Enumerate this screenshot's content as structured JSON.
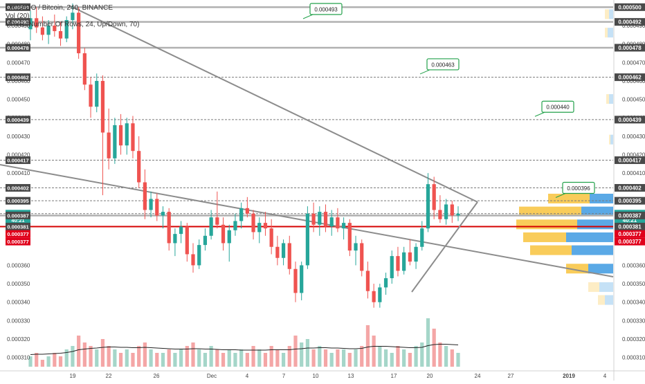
{
  "header": {
    "symbol_line": "OmiseGO / Bitcoin, 240, BINANCE",
    "vol_line": "Vol (20)",
    "vpvr_line": "VPVR (Number Of Rows, 24, Up/Down, 70)"
  },
  "colors": {
    "up": "#26a69a",
    "down": "#ef5350",
    "vol_up": "#a5d6c9",
    "vol_down": "#f4a6a6",
    "trendline": "#8c8c8c",
    "hline": "#9e9e9e",
    "red_level": "#d50000",
    "vp_up": "#5aa9e6",
    "vp_down": "#f9cc5a",
    "callout_border": "#22a14a",
    "label_dark": "#4a4a4a",
    "label_teal": "#26a69a",
    "label_red": "#e0001b"
  },
  "chart_data": {
    "type": "candlestick",
    "title": "OmiseGO / Bitcoin, 240, BINANCE",
    "x_tick_labels": [
      "19",
      "22",
      "26",
      "Dec",
      "4",
      "7",
      "10",
      "13",
      "17",
      "20",
      "24",
      "27",
      "2019",
      "4"
    ],
    "y_tick_labels": [
      "0.000310",
      "0.000320",
      "0.000330",
      "0.000340",
      "0.000350",
      "0.000360",
      "0.000410",
      "0.000420",
      "0.000430",
      "0.000440",
      "0.000450",
      "0.000460",
      "0.000470",
      "0.000480",
      "0.000490",
      "0.000500"
    ],
    "y_range": [
      0.000305,
      0.000502
    ],
    "price_labels": [
      {
        "text": "0.000500",
        "value": 0.0005,
        "style": "dark"
      },
      {
        "text": "0.000492",
        "value": 0.000492,
        "style": "dark"
      },
      {
        "text": "0.000478",
        "value": 0.000478,
        "style": "dark"
      },
      {
        "text": "0.000462",
        "value": 0.000462,
        "style": "dark"
      },
      {
        "text": "0.000439",
        "value": 0.000439,
        "style": "dark"
      },
      {
        "text": "0.000417",
        "value": 0.000417,
        "style": "dark"
      },
      {
        "text": "0.000402",
        "value": 0.000402,
        "style": "dark"
      },
      {
        "text": "0.000395",
        "value": 0.000395,
        "style": "dark"
      },
      {
        "text": "0.000388",
        "value": 0.000388,
        "style": "teal"
      },
      {
        "text": "40:21",
        "value": 0.0003845,
        "style": "teal"
      },
      {
        "text": "0.000387",
        "value": 0.000387,
        "style": "dark"
      },
      {
        "text": "0.000381",
        "value": 0.000381,
        "style": "dark"
      },
      {
        "text": "0.000377",
        "value": 0.000377,
        "style": "red"
      },
      {
        "text": "0.000377",
        "value": 0.000377,
        "style": "red"
      }
    ],
    "horizontal_levels": [
      {
        "value": 0.0005,
        "style": "solid"
      },
      {
        "value": 0.000492,
        "style": "solid"
      },
      {
        "value": 0.000478,
        "style": "solid"
      },
      {
        "value": 0.000462,
        "style": "dashed"
      },
      {
        "value": 0.000439,
        "style": "dashed"
      },
      {
        "value": 0.000417,
        "style": "dashed"
      },
      {
        "value": 0.000402,
        "style": "dashed"
      },
      {
        "value": 0.000395,
        "style": "dashed"
      },
      {
        "value": 0.000388,
        "style": "dashed"
      },
      {
        "value": 0.000387,
        "style": "solid"
      },
      {
        "value": 0.000381,
        "style": "red"
      }
    ],
    "callouts": [
      {
        "text": "0.000493",
        "value": 0.000493
      },
      {
        "text": "0.000463",
        "value": 0.000463
      },
      {
        "text": "0.000440",
        "value": 0.00044
      },
      {
        "text": "0.000396",
        "value": 0.000396
      }
    ],
    "candles": [
      {
        "o": 0.000488,
        "h": 0.000498,
        "l": 0.000482,
        "c": 0.000494
      },
      {
        "o": 0.000494,
        "h": 0.0005,
        "l": 0.000486,
        "c": 0.000489
      },
      {
        "o": 0.000489,
        "h": 0.000495,
        "l": 0.000482,
        "c": 0.000485
      },
      {
        "o": 0.000485,
        "h": 0.000493,
        "l": 0.00048,
        "c": 0.00049
      },
      {
        "o": 0.00049,
        "h": 0.000496,
        "l": 0.000484,
        "c": 0.000487
      },
      {
        "o": 0.000487,
        "h": 0.000492,
        "l": 0.000479,
        "c": 0.000483
      },
      {
        "o": 0.000483,
        "h": 0.000495,
        "l": 0.000481,
        "c": 0.000493
      },
      {
        "o": 0.000493,
        "h": 0.000502,
        "l": 0.000488,
        "c": 0.000497
      },
      {
        "o": 0.000497,
        "h": 0.0005,
        "l": 0.000472,
        "c": 0.000475
      },
      {
        "o": 0.000475,
        "h": 0.000478,
        "l": 0.000455,
        "c": 0.000458
      },
      {
        "o": 0.000458,
        "h": 0.000462,
        "l": 0.00044,
        "c": 0.000446
      },
      {
        "o": 0.000446,
        "h": 0.000464,
        "l": 0.000443,
        "c": 0.00046
      },
      {
        "o": 0.00046,
        "h": 0.000463,
        "l": 0.000398,
        "c": 0.000432
      },
      {
        "o": 0.000432,
        "h": 0.000445,
        "l": 0.000412,
        "c": 0.000418
      },
      {
        "o": 0.000418,
        "h": 0.00044,
        "l": 0.000415,
        "c": 0.000436
      },
      {
        "o": 0.000436,
        "h": 0.000442,
        "l": 0.00042,
        "c": 0.000425
      },
      {
        "o": 0.000425,
        "h": 0.00044,
        "l": 0.00042,
        "c": 0.000437
      },
      {
        "o": 0.000437,
        "h": 0.000441,
        "l": 0.000418,
        "c": 0.000422
      },
      {
        "o": 0.000422,
        "h": 0.00043,
        "l": 0.000402,
        "c": 0.000405
      },
      {
        "o": 0.000405,
        "h": 0.000412,
        "l": 0.000385,
        "c": 0.00039
      },
      {
        "o": 0.00039,
        "h": 0.0004,
        "l": 0.000386,
        "c": 0.000396
      },
      {
        "o": 0.000396,
        "h": 0.000399,
        "l": 0.000384,
        "c": 0.000387
      },
      {
        "o": 0.000387,
        "h": 0.000392,
        "l": 0.00038,
        "c": 0.000389
      },
      {
        "o": 0.000389,
        "h": 0.000391,
        "l": 0.000368,
        "c": 0.000372
      },
      {
        "o": 0.000372,
        "h": 0.00038,
        "l": 0.000365,
        "c": 0.000377
      },
      {
        "o": 0.000377,
        "h": 0.000384,
        "l": 0.000372,
        "c": 0.000381
      },
      {
        "o": 0.000381,
        "h": 0.000383,
        "l": 0.000362,
        "c": 0.000366
      },
      {
        "o": 0.000366,
        "h": 0.000372,
        "l": 0.000356,
        "c": 0.00036
      },
      {
        "o": 0.00036,
        "h": 0.000374,
        "l": 0.000358,
        "c": 0.000371
      },
      {
        "o": 0.000371,
        "h": 0.00038,
        "l": 0.000368,
        "c": 0.000376
      },
      {
        "o": 0.000376,
        "h": 0.00039,
        "l": 0.000374,
        "c": 0.000386
      },
      {
        "o": 0.000386,
        "h": 0.0004,
        "l": 0.00038,
        "c": 0.000382
      },
      {
        "o": 0.000382,
        "h": 0.000386,
        "l": 0.000368,
        "c": 0.000372
      },
      {
        "o": 0.000372,
        "h": 0.000382,
        "l": 0.000362,
        "c": 0.000379
      },
      {
        "o": 0.000379,
        "h": 0.000388,
        "l": 0.000376,
        "c": 0.000384
      },
      {
        "o": 0.000384,
        "h": 0.000394,
        "l": 0.00038,
        "c": 0.000391
      },
      {
        "o": 0.000391,
        "h": 0.000397,
        "l": 0.000386,
        "c": 0.000388
      },
      {
        "o": 0.000388,
        "h": 0.00039,
        "l": 0.000374,
        "c": 0.000378
      },
      {
        "o": 0.000378,
        "h": 0.000386,
        "l": 0.000372,
        "c": 0.000383
      },
      {
        "o": 0.000383,
        "h": 0.000389,
        "l": 0.000376,
        "c": 0.00038
      },
      {
        "o": 0.00038,
        "h": 0.000385,
        "l": 0.000366,
        "c": 0.00037
      },
      {
        "o": 0.00037,
        "h": 0.000376,
        "l": 0.00036,
        "c": 0.000364
      },
      {
        "o": 0.000364,
        "h": 0.000374,
        "l": 0.00036,
        "c": 0.000372
      },
      {
        "o": 0.000372,
        "h": 0.000376,
        "l": 0.000355,
        "c": 0.000358
      },
      {
        "o": 0.000358,
        "h": 0.000362,
        "l": 0.00034,
        "c": 0.000345
      },
      {
        "o": 0.000345,
        "h": 0.000362,
        "l": 0.000341,
        "c": 0.00036
      },
      {
        "o": 0.00036,
        "h": 0.000392,
        "l": 0.000358,
        "c": 0.000388
      },
      {
        "o": 0.000388,
        "h": 0.000394,
        "l": 0.000378,
        "c": 0.000382
      },
      {
        "o": 0.000382,
        "h": 0.000392,
        "l": 0.000376,
        "c": 0.000389
      },
      {
        "o": 0.000389,
        "h": 0.000393,
        "l": 0.000378,
        "c": 0.000381
      },
      {
        "o": 0.000381,
        "h": 0.00039,
        "l": 0.000376,
        "c": 0.000386
      },
      {
        "o": 0.000386,
        "h": 0.000391,
        "l": 0.000378,
        "c": 0.00038
      },
      {
        "o": 0.00038,
        "h": 0.000386,
        "l": 0.000374,
        "c": 0.000383
      },
      {
        "o": 0.000383,
        "h": 0.000385,
        "l": 0.000365,
        "c": 0.000368
      },
      {
        "o": 0.000368,
        "h": 0.000376,
        "l": 0.00036,
        "c": 0.000372
      },
      {
        "o": 0.000372,
        "h": 0.000374,
        "l": 0.000354,
        "c": 0.000357
      },
      {
        "o": 0.000357,
        "h": 0.000362,
        "l": 0.000342,
        "c": 0.000346
      },
      {
        "o": 0.000346,
        "h": 0.00035,
        "l": 0.000337,
        "c": 0.00034
      },
      {
        "o": 0.00034,
        "h": 0.00035,
        "l": 0.000337,
        "c": 0.000348
      },
      {
        "o": 0.000348,
        "h": 0.000356,
        "l": 0.000344,
        "c": 0.000353
      },
      {
        "o": 0.000353,
        "h": 0.000368,
        "l": 0.00035,
        "c": 0.000365
      },
      {
        "o": 0.000365,
        "h": 0.00037,
        "l": 0.000354,
        "c": 0.000357
      },
      {
        "o": 0.000357,
        "h": 0.00037,
        "l": 0.000355,
        "c": 0.000367
      },
      {
        "o": 0.000367,
        "h": 0.000374,
        "l": 0.00036,
        "c": 0.000362
      },
      {
        "o": 0.000362,
        "h": 0.000372,
        "l": 0.000358,
        "c": 0.00037
      },
      {
        "o": 0.00037,
        "h": 0.000384,
        "l": 0.000368,
        "c": 0.00038
      },
      {
        "o": 0.00038,
        "h": 0.00041,
        "l": 0.000378,
        "c": 0.000404
      },
      {
        "o": 0.000404,
        "h": 0.000408,
        "l": 0.000385,
        "c": 0.00039
      },
      {
        "o": 0.00039,
        "h": 0.000398,
        "l": 0.000383,
        "c": 0.000385
      },
      {
        "o": 0.000385,
        "h": 0.000396,
        "l": 0.000382,
        "c": 0.000393
      },
      {
        "o": 0.000393,
        "h": 0.000395,
        "l": 0.000383,
        "c": 0.000387
      },
      {
        "o": 0.000387,
        "h": 0.000392,
        "l": 0.000384,
        "c": 0.000388
      }
    ],
    "volume": [
      3,
      4,
      2,
      3,
      4,
      3,
      5,
      6,
      9,
      7,
      6,
      5,
      8,
      6,
      5,
      4,
      5,
      4,
      6,
      7,
      5,
      4,
      4,
      5,
      4,
      5,
      6,
      7,
      5,
      4,
      6,
      5,
      4,
      5,
      4,
      5,
      4,
      6,
      5,
      4,
      6,
      5,
      4,
      6,
      9,
      7,
      8,
      5,
      6,
      5,
      4,
      5,
      5,
      4,
      5,
      6,
      12,
      9,
      6,
      5,
      4,
      6,
      5,
      4,
      6,
      7,
      14,
      11,
      7,
      6,
      5,
      4
    ],
    "volume_ma": [
      3.5,
      3.6,
      3.6,
      3.7,
      3.8,
      3.9,
      4.1,
      4.4,
      4.9,
      5.1,
      5.3,
      5.4,
      5.6,
      5.7,
      5.7,
      5.6,
      5.6,
      5.5,
      5.5,
      5.6,
      5.5,
      5.4,
      5.3,
      5.2,
      5.1,
      5.1,
      5.1,
      5.2,
      5.2,
      5.1,
      5.1,
      5.0,
      4.9,
      4.9,
      4.9,
      4.8,
      4.8,
      4.8,
      4.8,
      4.8,
      4.9,
      4.9,
      4.9,
      4.9,
      5.1,
      5.2,
      5.4,
      5.4,
      5.5,
      5.5,
      5.4,
      5.4,
      5.3,
      5.2,
      5.2,
      5.3,
      5.7,
      5.9,
      5.9,
      5.9,
      5.8,
      5.7,
      5.6,
      5.5,
      5.5,
      5.6,
      6.1,
      6.4,
      6.5,
      6.5,
      6.4,
      6.3
    ],
    "volume_profile": [
      {
        "value": 0.000396,
        "up": 0.3,
        "down": 0.17
      },
      {
        "value": 0.000389,
        "up": 0.45,
        "down": 0.23
      },
      {
        "value": 0.000382,
        "up": 0.44,
        "down": 0.26
      },
      {
        "value": 0.000375,
        "up": 0.31,
        "down": 0.34
      },
      {
        "value": 0.000368,
        "up": 0.3,
        "down": 0.3
      },
      {
        "value": 0.000358,
        "up": 0.16,
        "down": 0.18
      },
      {
        "value": 0.000348,
        "up": 0.08,
        "down": 0.1
      },
      {
        "value": 0.000341,
        "up": 0.05,
        "down": 0.06
      },
      {
        "value": 0.000496,
        "up": 0.03,
        "down": 0.03
      },
      {
        "value": 0.000486,
        "up": 0.02,
        "down": 0.04
      },
      {
        "value": 0.00045,
        "up": 0.02,
        "down": 0.03
      },
      {
        "value": 0.000428,
        "up": 0.01,
        "down": 0.02
      }
    ]
  }
}
